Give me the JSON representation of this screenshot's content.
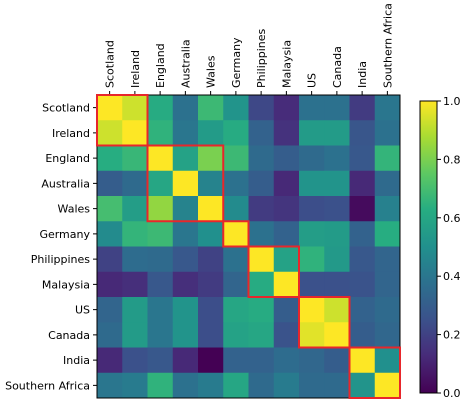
{
  "chart_data": {
    "type": "heatmap",
    "title": "",
    "xlabel": "",
    "ylabel": "",
    "labels": [
      "Scotland",
      "Ireland",
      "England",
      "Australia",
      "Wales",
      "Germany",
      "Philippines",
      "Malaysia",
      "US",
      "Canada",
      "India",
      "Southern Africa"
    ],
    "matrix": [
      [
        1.0,
        0.93,
        0.62,
        0.38,
        0.68,
        0.52,
        0.22,
        0.13,
        0.38,
        0.38,
        0.18,
        0.4
      ],
      [
        0.93,
        1.0,
        0.65,
        0.4,
        0.55,
        0.62,
        0.32,
        0.15,
        0.55,
        0.55,
        0.27,
        0.38
      ],
      [
        0.63,
        0.67,
        1.0,
        0.58,
        0.8,
        0.68,
        0.35,
        0.3,
        0.35,
        0.38,
        0.28,
        0.66
      ],
      [
        0.3,
        0.35,
        0.6,
        1.0,
        0.45,
        0.38,
        0.3,
        0.12,
        0.52,
        0.52,
        0.12,
        0.35
      ],
      [
        0.7,
        0.56,
        0.84,
        0.45,
        1.0,
        0.48,
        0.18,
        0.16,
        0.24,
        0.25,
        0.03,
        0.44
      ],
      [
        0.48,
        0.66,
        0.68,
        0.4,
        0.5,
        1.0,
        0.38,
        0.32,
        0.56,
        0.55,
        0.32,
        0.63
      ],
      [
        0.2,
        0.36,
        0.35,
        0.28,
        0.2,
        0.38,
        1.0,
        0.58,
        0.65,
        0.54,
        0.28,
        0.33
      ],
      [
        0.12,
        0.14,
        0.28,
        0.14,
        0.18,
        0.33,
        0.62,
        1.0,
        0.25,
        0.25,
        0.26,
        0.33
      ],
      [
        0.33,
        0.55,
        0.4,
        0.52,
        0.24,
        0.6,
        0.62,
        0.3,
        1.0,
        0.93,
        0.32,
        0.35
      ],
      [
        0.35,
        0.55,
        0.4,
        0.52,
        0.24,
        0.58,
        0.6,
        0.26,
        0.96,
        1.0,
        0.3,
        0.34
      ],
      [
        0.12,
        0.25,
        0.28,
        0.12,
        0.0,
        0.32,
        0.32,
        0.36,
        0.34,
        0.3,
        1.0,
        0.5
      ],
      [
        0.4,
        0.42,
        0.65,
        0.38,
        0.42,
        0.6,
        0.35,
        0.42,
        0.35,
        0.35,
        0.52,
        1.0
      ]
    ],
    "colormap": "viridis",
    "vmin": 0.0,
    "vmax": 1.0,
    "colorbar_ticks": [
      "0.0",
      "0.2",
      "0.4",
      "0.6",
      "0.8",
      "1.0"
    ],
    "colorbar_tick_values": [
      0.0,
      0.2,
      0.4,
      0.6,
      0.8,
      1.0
    ],
    "cluster_boxes": [
      [
        0,
        1
      ],
      [
        2,
        4
      ],
      [
        5,
        5
      ],
      [
        6,
        7
      ],
      [
        8,
        9
      ],
      [
        10,
        11
      ]
    ],
    "cluster_box_color": "#e8262b",
    "grid": false
  }
}
